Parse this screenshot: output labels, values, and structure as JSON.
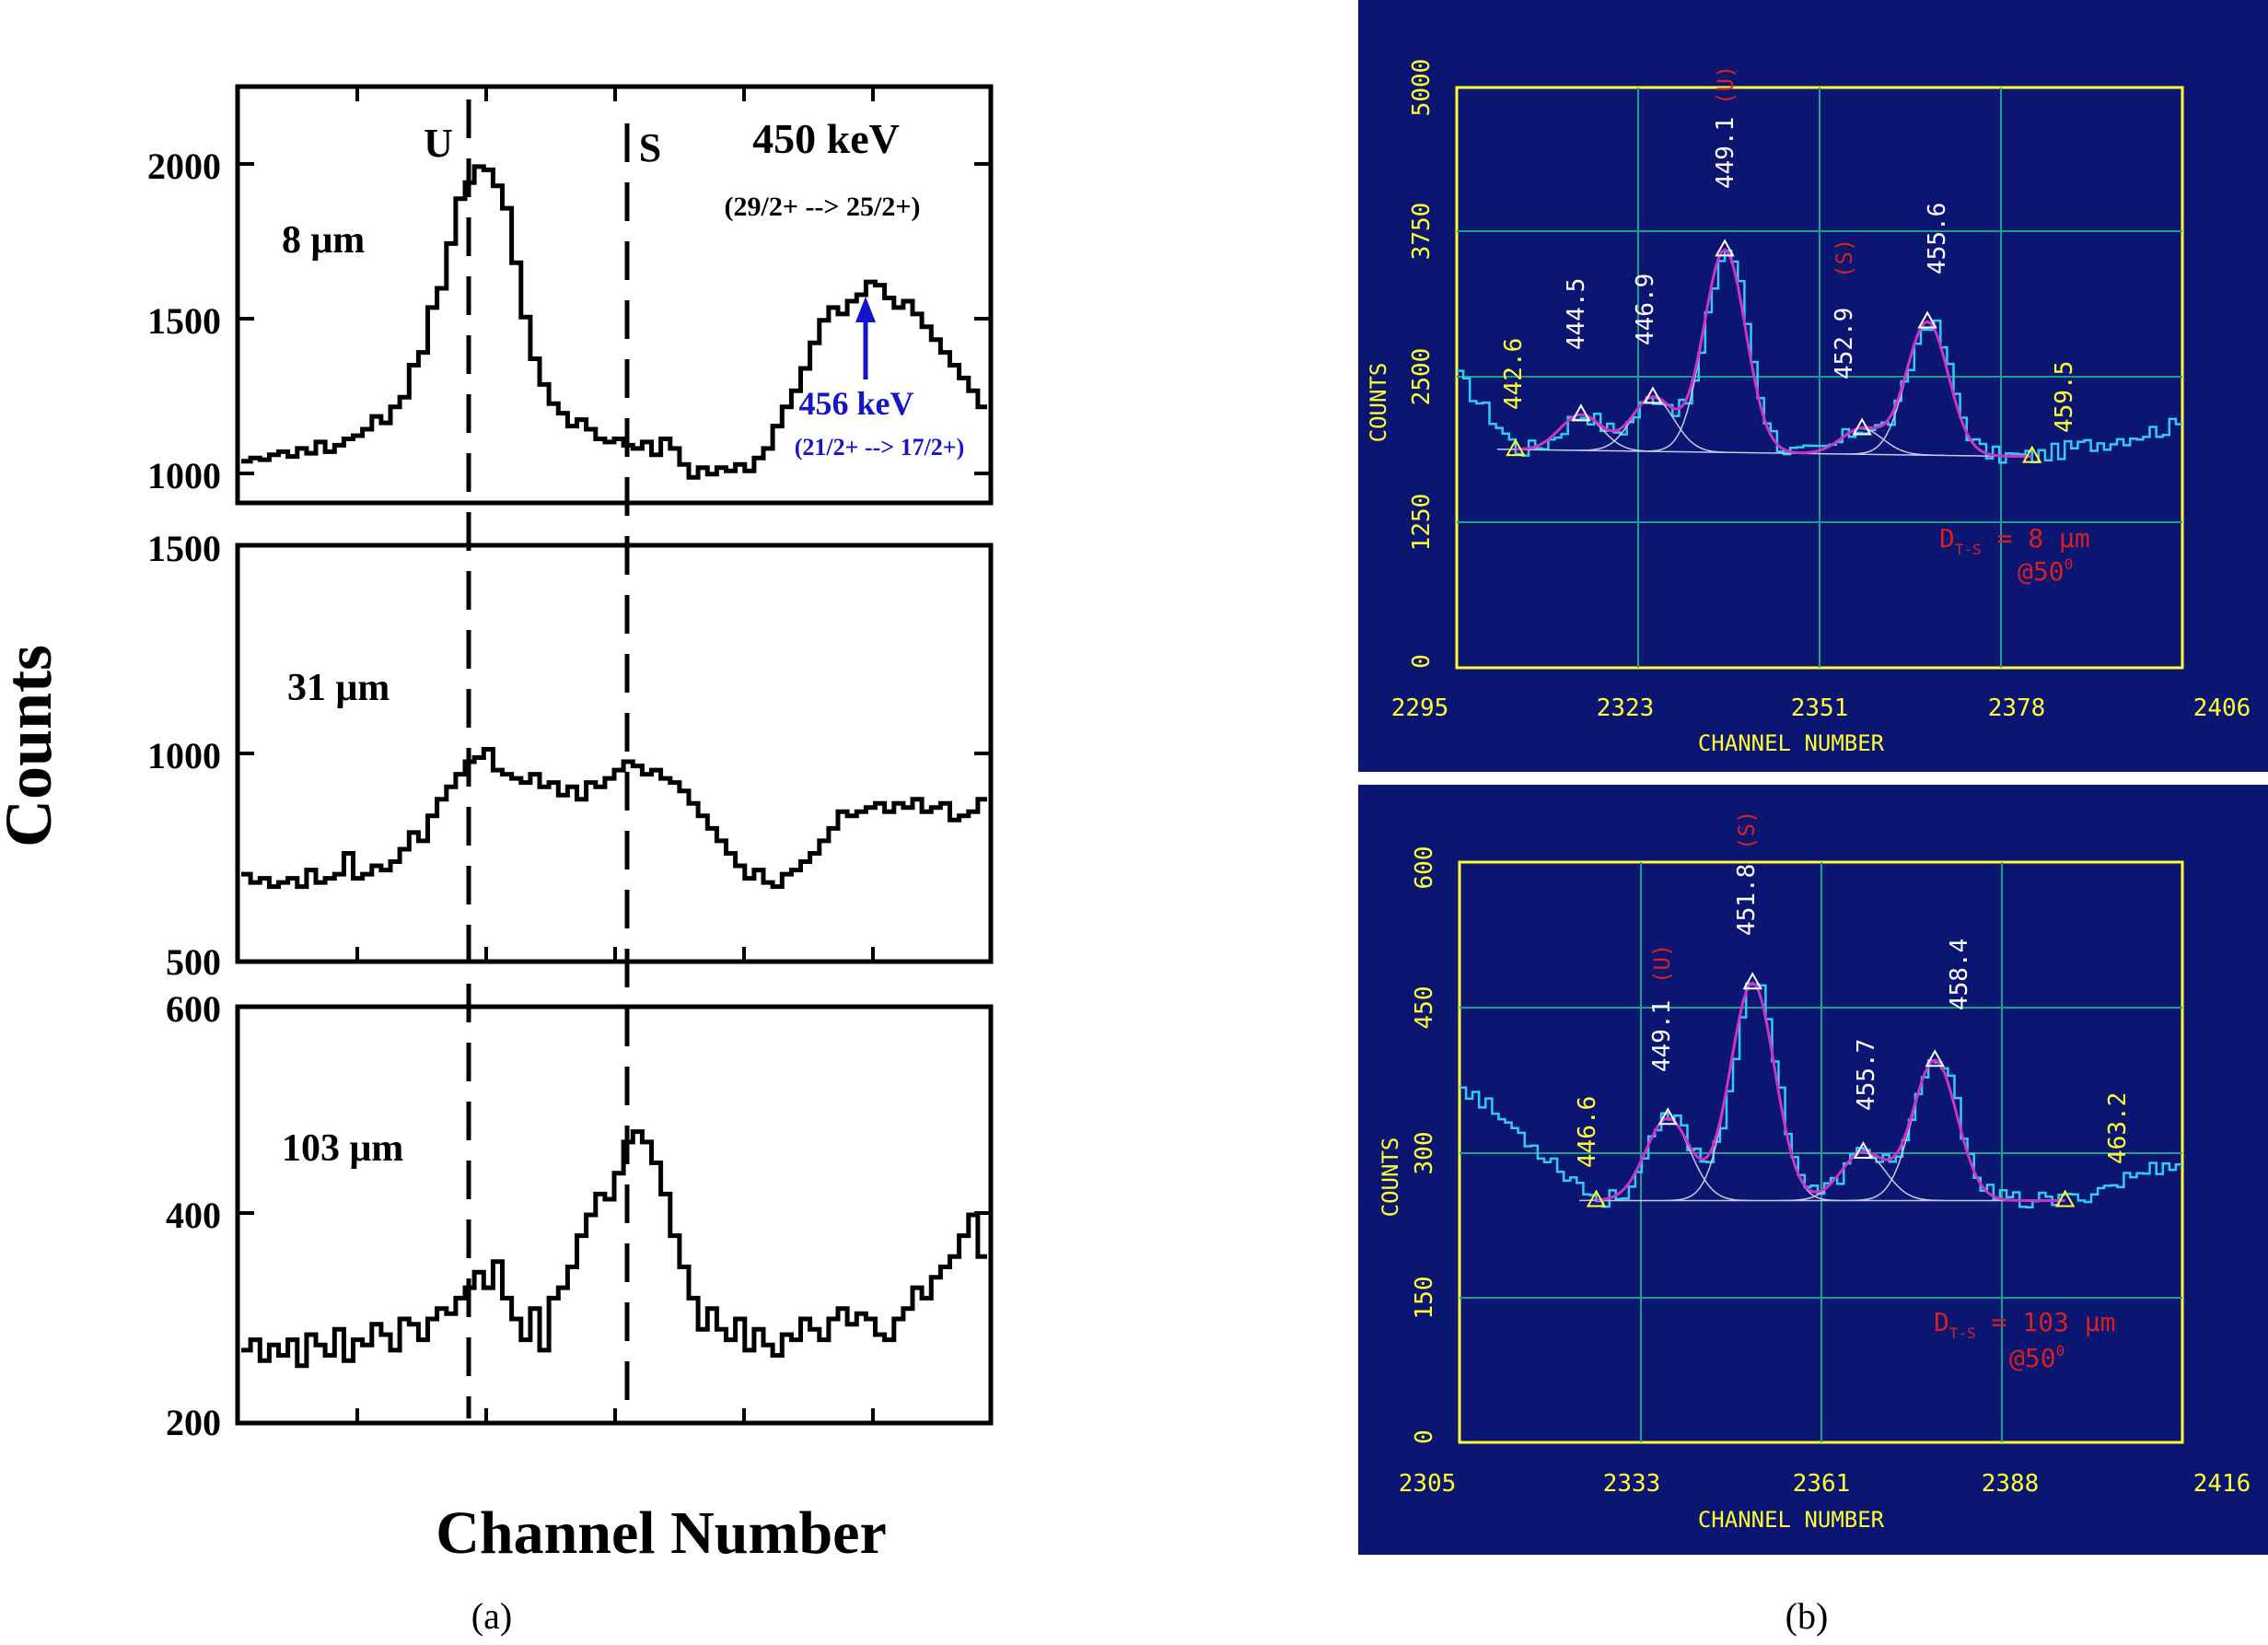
{
  "panel_a": {
    "y_axis_label": "Counts",
    "x_axis_label": "Channel Number",
    "caption": "(a)",
    "marker_U": "U",
    "marker_S": "S",
    "top_title": "450 keV",
    "top_title_transition": "(29/2+ --> 25/2+)",
    "annot_456": "456 keV",
    "annot_456_transition": "(21/2+ --> 17/2+)",
    "annot_color": "#1414c8",
    "subplots": [
      {
        "label": "8 μm",
        "yticks": [
          "2000",
          "1500",
          "1000"
        ]
      },
      {
        "label": "31 μm",
        "yticks": [
          "1500",
          "1000",
          "500"
        ]
      },
      {
        "label": "103 μm",
        "yticks": [
          "600",
          "400",
          "200"
        ]
      }
    ]
  },
  "panel_b": {
    "caption": "(b)",
    "bg_color": "#0b1572",
    "axis_color": "#ffff33",
    "grid_color": "#1f9e8e",
    "data_color": "#33ccee",
    "fit_color": "#cc33cc",
    "red_color": "#d92020",
    "x_axis_label": "CHANNEL NUMBER",
    "y_axis_label": "COUNTS",
    "top": {
      "xticks": [
        "2295",
        "2323",
        "2351",
        "2378",
        "2406"
      ],
      "yticks": [
        "5000",
        "3750",
        "2500",
        "1250",
        "0"
      ],
      "peak_labels": [
        "444.5",
        "446.9",
        "449.1",
        "452.9",
        "455.6"
      ],
      "red_tags": [
        "(U)",
        "(S)"
      ],
      "limit_labels": [
        "442.6",
        "459.5"
      ],
      "distance_prefix": "D",
      "distance_sub": "T-S",
      "distance_value": " = 8 μm",
      "angle": "@50",
      "angle_sup": "0"
    },
    "bottom": {
      "xticks": [
        "2305",
        "2333",
        "2361",
        "2388",
        "2416"
      ],
      "yticks": [
        "600",
        "450",
        "300",
        "150",
        "0"
      ],
      "peak_labels": [
        "449.1",
        "451.8",
        "455.7",
        "458.4"
      ],
      "red_tags": [
        "(U)",
        "(S)"
      ],
      "limit_labels": [
        "446.6",
        "463.2"
      ],
      "distance_prefix": "D",
      "distance_sub": "T-S",
      "distance_value": " = 103 μm",
      "angle": "@50",
      "angle_sup": "0"
    }
  },
  "chart_data": [
    {
      "type": "line",
      "title": "8 μm",
      "xlabel": "Channel Number",
      "ylabel": "Counts",
      "ylim": [
        950,
        2250
      ],
      "y": [
        1080,
        1090,
        1085,
        1100,
        1110,
        1095,
        1120,
        1105,
        1140,
        1110,
        1130,
        1150,
        1160,
        1180,
        1220,
        1200,
        1250,
        1280,
        1380,
        1420,
        1560,
        1620,
        1760,
        1900,
        1950,
        2000,
        1990,
        1940,
        1870,
        1700,
        1530,
        1400,
        1320,
        1260,
        1230,
        1190,
        1210,
        1180,
        1150,
        1140,
        1150,
        1130,
        1120,
        1140,
        1100,
        1150,
        1120,
        1070,
        1030,
        1060,
        1040,
        1060,
        1050,
        1070,
        1050,
        1090,
        1120,
        1190,
        1250,
        1300,
        1370,
        1450,
        1520,
        1560,
        1540,
        1580,
        1600,
        1640,
        1630,
        1590,
        1560,
        1580,
        1540,
        1500,
        1460,
        1420,
        1380,
        1340,
        1300,
        1250
      ]
    },
    {
      "type": "line",
      "title": "31 μm",
      "xlabel": "Channel Number",
      "ylabel": "Counts",
      "ylim": [
        500,
        1500
      ],
      "y": [
        710,
        690,
        700,
        680,
        690,
        700,
        680,
        720,
        690,
        700,
        710,
        760,
        700,
        710,
        730,
        720,
        740,
        770,
        810,
        790,
        850,
        890,
        920,
        950,
        980,
        990,
        1010,
        960,
        950,
        940,
        930,
        950,
        920,
        930,
        900,
        920,
        890,
        930,
        920,
        940,
        960,
        980,
        970,
        950,
        960,
        940,
        930,
        910,
        880,
        850,
        820,
        790,
        760,
        730,
        700,
        720,
        690,
        680,
        710,
        720,
        740,
        760,
        790,
        820,
        860,
        850,
        860,
        870,
        880,
        860,
        880,
        870,
        890,
        860,
        870,
        880,
        840,
        850,
        860,
        890
      ]
    },
    {
      "type": "line",
      "title": "103 μm",
      "xlabel": "Channel Number",
      "ylabel": "Counts",
      "ylim": [
        200,
        600
      ],
      "y": [
        270,
        280,
        260,
        275,
        265,
        280,
        255,
        285,
        275,
        265,
        290,
        260,
        280,
        275,
        295,
        285,
        270,
        300,
        295,
        280,
        300,
        310,
        305,
        320,
        330,
        345,
        330,
        355,
        320,
        300,
        280,
        310,
        270,
        320,
        330,
        350,
        380,
        400,
        420,
        415,
        440,
        470,
        480,
        470,
        450,
        420,
        380,
        350,
        320,
        290,
        310,
        290,
        280,
        300,
        270,
        290,
        275,
        265,
        285,
        280,
        300,
        290,
        280,
        300,
        310,
        295,
        305,
        300,
        285,
        280,
        300,
        310,
        330,
        320,
        340,
        350,
        360,
        380,
        400,
        360
      ]
    },
    {
      "type": "line",
      "title": "D T-S = 8 μm @50",
      "xlabel": "CHANNEL NUMBER",
      "ylabel": "COUNTS",
      "xlim": [
        2295,
        2406
      ],
      "ylim": [
        0,
        5000
      ],
      "peaks": [
        {
          "energy": "442.6",
          "channel": 2304,
          "counts": 1880
        },
        {
          "energy": "444.5",
          "channel": 2314,
          "counts": 2180
        },
        {
          "energy": "446.9",
          "channel": 2325,
          "counts": 2330
        },
        {
          "energy": "449.1",
          "channel": 2336,
          "counts": 3600
        },
        {
          "energy": "452.9",
          "channel": 2357,
          "counts": 2060
        },
        {
          "energy": "455.6",
          "channel": 2367,
          "counts": 2980
        },
        {
          "energy": "459.5",
          "channel": 2383,
          "counts": 1820
        }
      ]
    },
    {
      "type": "line",
      "title": "D T-S = 103 μm @50",
      "xlabel": "CHANNEL NUMBER",
      "ylabel": "COUNTS",
      "xlim": [
        2305,
        2416
      ],
      "ylim": [
        0,
        600
      ],
      "peaks": [
        {
          "energy": "446.6",
          "channel": 2326,
          "counts": 250
        },
        {
          "energy": "449.1",
          "channel": 2337,
          "counts": 335
        },
        {
          "energy": "451.8",
          "channel": 2350,
          "counts": 475
        },
        {
          "energy": "455.7",
          "channel": 2367,
          "counts": 300
        },
        {
          "energy": "458.4",
          "channel": 2378,
          "counts": 395
        },
        {
          "energy": "463.2",
          "channel": 2398,
          "counts": 250
        }
      ]
    }
  ]
}
